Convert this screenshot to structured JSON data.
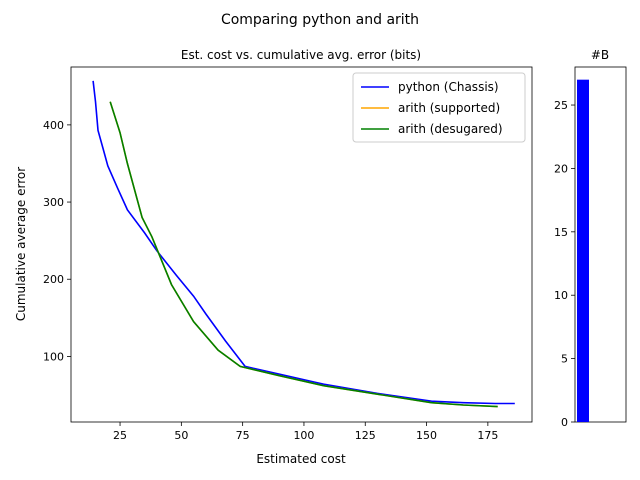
{
  "figure": {
    "suptitle": "Comparing python and arith"
  },
  "chart_data": [
    {
      "type": "line",
      "title": "Est. cost vs. cumulative avg. error (bits)",
      "xlabel": "Estimated cost",
      "ylabel": "Cumulative average error",
      "xlim": [
        5,
        193
      ],
      "ylim": [
        15,
        475
      ],
      "xticks": [
        25,
        50,
        75,
        100,
        125,
        150,
        175
      ],
      "yticks": [
        100,
        200,
        300,
        400
      ],
      "grid": false,
      "legend_position": "top-right",
      "series": [
        {
          "name": "python (Chassis)",
          "color": "#0000ff",
          "points": [
            [
              14,
              457
            ],
            [
              15,
              430
            ],
            [
              16,
              393
            ],
            [
              18,
              370
            ],
            [
              20,
              347
            ],
            [
              24,
              318
            ],
            [
              28,
              290
            ],
            [
              35,
              260
            ],
            [
              40,
              237
            ],
            [
              48,
              205
            ],
            [
              55,
              178
            ],
            [
              60,
              155
            ],
            [
              68,
              120
            ],
            [
              76,
              87
            ],
            [
              90,
              77
            ],
            [
              108,
              64
            ],
            [
              130,
              52
            ],
            [
              152,
              42
            ],
            [
              165,
              40
            ],
            [
              178,
              39
            ],
            [
              186,
              39
            ]
          ]
        },
        {
          "name": "arith (supported)",
          "color": "#ffa500",
          "points": [
            [
              21,
              430
            ],
            [
              25,
              390
            ],
            [
              28,
              350
            ],
            [
              34,
              280
            ],
            [
              38,
              255
            ],
            [
              46,
              193
            ],
            [
              55,
              145
            ],
            [
              65,
              108
            ],
            [
              74,
              87
            ],
            [
              90,
              75
            ],
            [
              108,
              62
            ],
            [
              130,
              51
            ],
            [
              152,
              40
            ],
            [
              165,
              37
            ],
            [
              179,
              35
            ]
          ]
        },
        {
          "name": "arith (desugared)",
          "color": "#008000",
          "points": [
            [
              21,
              430
            ],
            [
              25,
              390
            ],
            [
              28,
              350
            ],
            [
              34,
              280
            ],
            [
              38,
              255
            ],
            [
              46,
              193
            ],
            [
              55,
              145
            ],
            [
              65,
              108
            ],
            [
              74,
              87
            ],
            [
              90,
              75
            ],
            [
              108,
              62
            ],
            [
              130,
              51
            ],
            [
              152,
              40
            ],
            [
              165,
              37
            ],
            [
              179,
              35
            ]
          ]
        }
      ]
    },
    {
      "type": "bar",
      "title": "#B",
      "categories": [
        ""
      ],
      "values": [
        27
      ],
      "color": "#0000ff",
      "ylim": [
        0,
        28
      ],
      "yticks": [
        0,
        5,
        10,
        15,
        20,
        25
      ],
      "grid": false
    }
  ]
}
